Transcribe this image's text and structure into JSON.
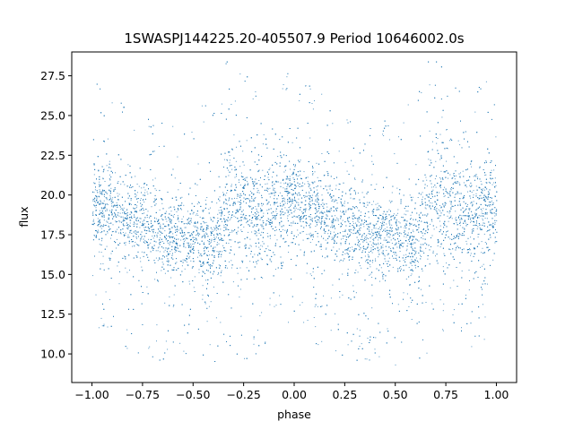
{
  "chart_data": {
    "type": "scatter",
    "title": "1SWASPJ144225.20-405507.9 Period 10646002.0s",
    "xlabel": "phase",
    "ylabel": "flux",
    "xlim": [
      -1.1,
      1.1
    ],
    "ylim": [
      8.2,
      29.0
    ],
    "xticks": [
      -1.0,
      -0.75,
      -0.5,
      -0.25,
      0.0,
      0.25,
      0.5,
      0.75,
      1.0
    ],
    "xtick_labels": [
      "−1.00",
      "−0.75",
      "−0.50",
      "−0.25",
      "0.00",
      "0.25",
      "0.50",
      "0.75",
      "1.00"
    ],
    "yticks": [
      10.0,
      12.5,
      15.0,
      17.5,
      20.0,
      22.5,
      25.0,
      27.5
    ],
    "ytick_labels": [
      "10.0",
      "12.5",
      "15.0",
      "17.5",
      "20.0",
      "22.5",
      "25.0",
      "27.5"
    ],
    "grid": false,
    "marker_color": "#1f77b4",
    "series": [
      {
        "phase_profile": {
          "x": [
            -1.0,
            -0.9,
            -0.8,
            -0.7,
            -0.6,
            -0.5,
            -0.45,
            -0.4,
            -0.33,
            -0.25,
            -0.15,
            -0.05,
            0.0,
            0.1,
            0.2,
            0.3,
            0.4,
            0.5,
            0.55,
            0.6,
            0.67,
            0.75,
            0.85,
            0.95,
            1.0
          ],
          "y_median": [
            19.5,
            19.2,
            18.5,
            18.0,
            17.5,
            17.2,
            17.0,
            16.8,
            19.5,
            19.0,
            18.8,
            19.2,
            19.5,
            19.2,
            18.5,
            18.0,
            17.5,
            17.2,
            17.0,
            16.8,
            19.5,
            19.0,
            18.8,
            19.2,
            19.5
          ],
          "y_low": [
            17.0,
            16.0,
            15.5,
            15.0,
            14.5,
            14.5,
            14.0,
            14.0,
            16.0,
            15.0,
            15.0,
            16.0,
            17.0,
            16.0,
            15.5,
            15.0,
            14.5,
            14.5,
            14.0,
            14.0,
            16.0,
            15.0,
            15.0,
            16.0,
            17.0
          ],
          "y_high": [
            23.5,
            22.5,
            21.5,
            21.0,
            20.5,
            20.0,
            21.5,
            21.0,
            25.5,
            23.5,
            23.0,
            23.0,
            23.5,
            22.5,
            21.5,
            21.0,
            20.5,
            20.0,
            21.5,
            21.0,
            25.5,
            23.5,
            23.0,
            23.0,
            23.5
          ]
        }
      }
    ]
  }
}
